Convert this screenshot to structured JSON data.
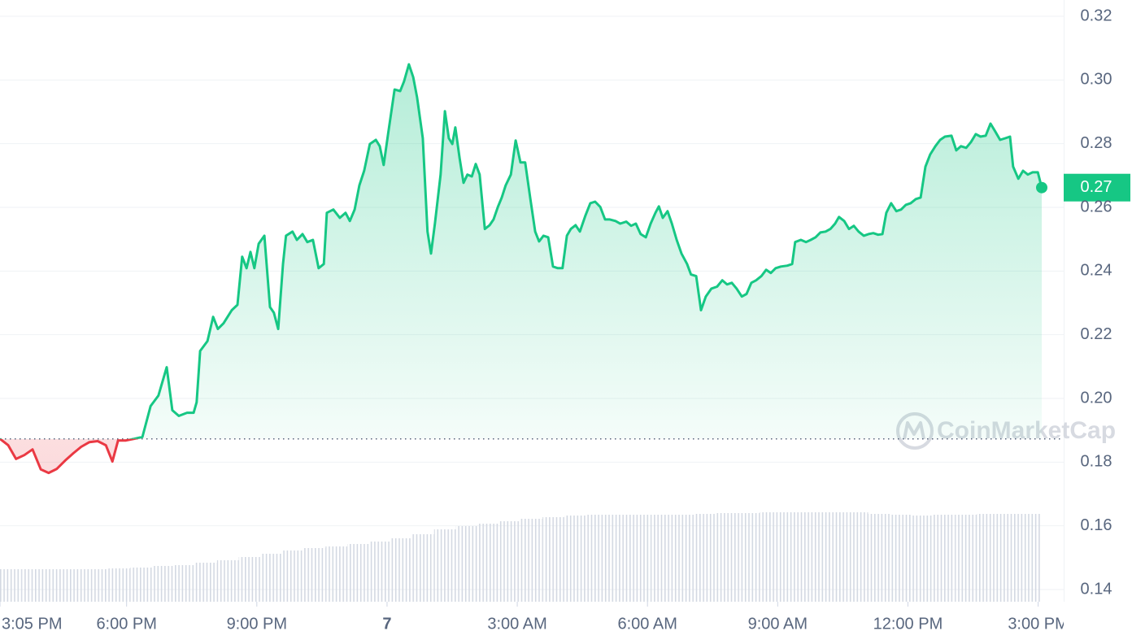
{
  "chart_data": {
    "type": "line",
    "x": [
      0,
      0.19,
      0.37,
      0.56,
      0.75,
      0.94,
      1.12,
      1.31,
      1.5,
      1.69,
      1.87,
      2.06,
      2.25,
      2.44,
      2.59,
      2.72,
      2.9,
      3.09,
      3.28,
      3.47,
      3.65,
      3.84,
      3.97,
      4.12,
      4.31,
      4.46,
      4.53,
      4.61,
      4.78,
      4.91,
      5.02,
      5.15,
      5.34,
      5.47,
      5.58,
      5.68,
      5.77,
      5.86,
      5.96,
      6.09,
      6.22,
      6.31,
      6.41,
      6.52,
      6.59,
      6.74,
      6.84,
      6.97,
      7.08,
      7.21,
      7.34,
      7.46,
      7.53,
      7.68,
      7.83,
      7.96,
      8.06,
      8.17,
      8.28,
      8.39,
      8.52,
      8.66,
      8.75,
      8.84,
      8.94,
      9.09,
      9.22,
      9.31,
      9.42,
      9.52,
      9.61,
      9.74,
      9.85,
      9.93,
      10.02,
      10.15,
      10.25,
      10.34,
      10.42,
      10.49,
      10.59,
      10.68,
      10.77,
      10.87,
      10.96,
      11.05,
      11.17,
      11.28,
      11.37,
      11.47,
      11.56,
      11.65,
      11.77,
      11.88,
      11.99,
      12.1,
      12.22,
      12.33,
      12.42,
      12.52,
      12.63,
      12.74,
      12.85,
      12.96,
      13.06,
      13.15,
      13.26,
      13.36,
      13.49,
      13.6,
      13.71,
      13.83,
      13.94,
      14.05,
      14.18,
      14.29,
      14.43,
      14.54,
      14.65,
      14.76,
      14.88,
      14.99,
      15.1,
      15.18,
      15.27,
      15.38,
      15.48,
      15.59,
      15.7,
      15.83,
      15.92,
      16.04,
      16.15,
      16.26,
      16.39,
      16.52,
      16.64,
      16.75,
      16.86,
      16.97,
      17.09,
      17.2,
      17.31,
      17.42,
      17.54,
      17.65,
      17.76,
      17.87,
      17.99,
      18.14,
      18.25,
      18.32,
      18.45,
      18.57,
      18.68,
      18.79,
      18.9,
      19.02,
      19.13,
      19.24,
      19.33,
      19.45,
      19.56,
      19.67,
      19.78,
      19.9,
      20.01,
      20.12,
      20.23,
      20.33,
      20.42,
      20.53,
      20.65,
      20.76,
      20.87,
      20.98,
      21.1,
      21.21,
      21.32,
      21.43,
      21.55,
      21.66,
      21.77,
      21.92,
      22.03,
      22.14,
      22.26,
      22.37,
      22.48,
      22.59,
      22.71,
      22.82,
      22.93,
      23.04,
      23.16,
      23.27,
      23.34,
      23.46,
      23.57,
      23.68,
      23.79,
      23.91,
      24
    ],
    "values": [
      0.1873,
      0.1853,
      0.181,
      0.1822,
      0.184,
      0.1777,
      0.1766,
      0.1779,
      0.1805,
      0.1828,
      0.1848,
      0.1863,
      0.1866,
      0.1853,
      0.1802,
      0.1868,
      0.1868,
      0.1873,
      0.1879,
      0.1976,
      0.2009,
      0.2098,
      0.1963,
      0.1945,
      0.1955,
      0.1955,
      0.1988,
      0.2149,
      0.218,
      0.2256,
      0.2218,
      0.2236,
      0.2277,
      0.2294,
      0.2445,
      0.2409,
      0.246,
      0.2409,
      0.2486,
      0.2511,
      0.2287,
      0.2269,
      0.2218,
      0.2422,
      0.2511,
      0.2524,
      0.2498,
      0.2516,
      0.2491,
      0.2498,
      0.2409,
      0.2422,
      0.2583,
      0.2593,
      0.2567,
      0.2583,
      0.2557,
      0.2593,
      0.2669,
      0.2715,
      0.2799,
      0.2812,
      0.2792,
      0.2733,
      0.283,
      0.297,
      0.2965,
      0.2996,
      0.3049,
      0.3009,
      0.2945,
      0.2817,
      0.2524,
      0.2455,
      0.2549,
      0.2703,
      0.2902,
      0.2817,
      0.2799,
      0.2851,
      0.2754,
      0.2677,
      0.2703,
      0.2697,
      0.2736,
      0.2703,
      0.2532,
      0.2544,
      0.2562,
      0.2601,
      0.2631,
      0.2669,
      0.2703,
      0.281,
      0.2741,
      0.2741,
      0.2626,
      0.2524,
      0.2493,
      0.2511,
      0.2506,
      0.2414,
      0.2409,
      0.2409,
      0.2511,
      0.2532,
      0.2544,
      0.2524,
      0.2575,
      0.2613,
      0.2618,
      0.2601,
      0.2562,
      0.2562,
      0.2557,
      0.2549,
      0.2555,
      0.2542,
      0.2549,
      0.2516,
      0.2506,
      0.2549,
      0.2583,
      0.2603,
      0.2567,
      0.2588,
      0.2549,
      0.2498,
      0.2455,
      0.2422,
      0.2389,
      0.2384,
      0.2277,
      0.232,
      0.2345,
      0.2351,
      0.2371,
      0.2358,
      0.2363,
      0.2345,
      0.232,
      0.2328,
      0.2363,
      0.2371,
      0.2384,
      0.2404,
      0.2394,
      0.2409,
      0.2414,
      0.2417,
      0.2422,
      0.2491,
      0.2498,
      0.2491,
      0.2498,
      0.2506,
      0.2521,
      0.2524,
      0.2532,
      0.2549,
      0.257,
      0.2557,
      0.2532,
      0.2542,
      0.2524,
      0.2511,
      0.2516,
      0.2519,
      0.2514,
      0.2516,
      0.2583,
      0.2613,
      0.2588,
      0.2593,
      0.2608,
      0.2613,
      0.2626,
      0.2631,
      0.2728,
      0.2766,
      0.2792,
      0.2812,
      0.2822,
      0.2825,
      0.2779,
      0.2792,
      0.2787,
      0.2805,
      0.283,
      0.2822,
      0.2825,
      0.2863,
      0.2838,
      0.2812,
      0.2817,
      0.2822,
      0.2728,
      0.269,
      0.2715,
      0.2703,
      0.271,
      0.271,
      0.2662
    ],
    "baseline": 0.1873,
    "up_color": "#16c784",
    "down_color": "#ea3943",
    "last_price_label": "0.27",
    "xlim": [
      0,
      24
    ],
    "xticks": [
      {
        "value": 0,
        "label": "3:05 PM"
      },
      {
        "value": 2.917,
        "label": "6:00 PM"
      },
      {
        "value": 5.917,
        "label": "9:00 PM"
      },
      {
        "value": 8.917,
        "label": "7"
      },
      {
        "value": 11.917,
        "label": "3:00 AM"
      },
      {
        "value": 14.917,
        "label": "6:00 AM"
      },
      {
        "value": 17.917,
        "label": "9:00 AM"
      },
      {
        "value": 20.917,
        "label": "12:00 PM"
      },
      {
        "value": 23.917,
        "label": "3:00 PM"
      }
    ],
    "ylim": [
      0.14,
      0.32
    ],
    "yticks": [
      0.14,
      0.16,
      0.18,
      {
        "value": 0.2,
        "label": "0.20"
      },
      0.22,
      0.24,
      0.26,
      0.28,
      {
        "value": 0.3,
        "label": "0.30"
      },
      0.32
    ],
    "grid": true,
    "volume": {
      "color": "#cfd6e4",
      "ylim": [
        0,
        120
      ],
      "step": 0.5,
      "values": [
        40,
        40,
        40,
        40,
        40,
        41,
        42,
        44,
        45,
        48,
        51,
        55,
        59,
        63,
        66,
        68,
        71,
        74,
        78,
        83,
        89,
        93,
        96,
        99,
        102,
        104,
        106,
        107,
        107,
        107,
        107,
        107,
        108,
        109,
        109,
        110,
        110,
        110,
        110,
        110,
        108,
        107,
        106,
        107,
        107,
        108,
        108,
        108
      ]
    },
    "watermark": "CoinMarketCap"
  }
}
